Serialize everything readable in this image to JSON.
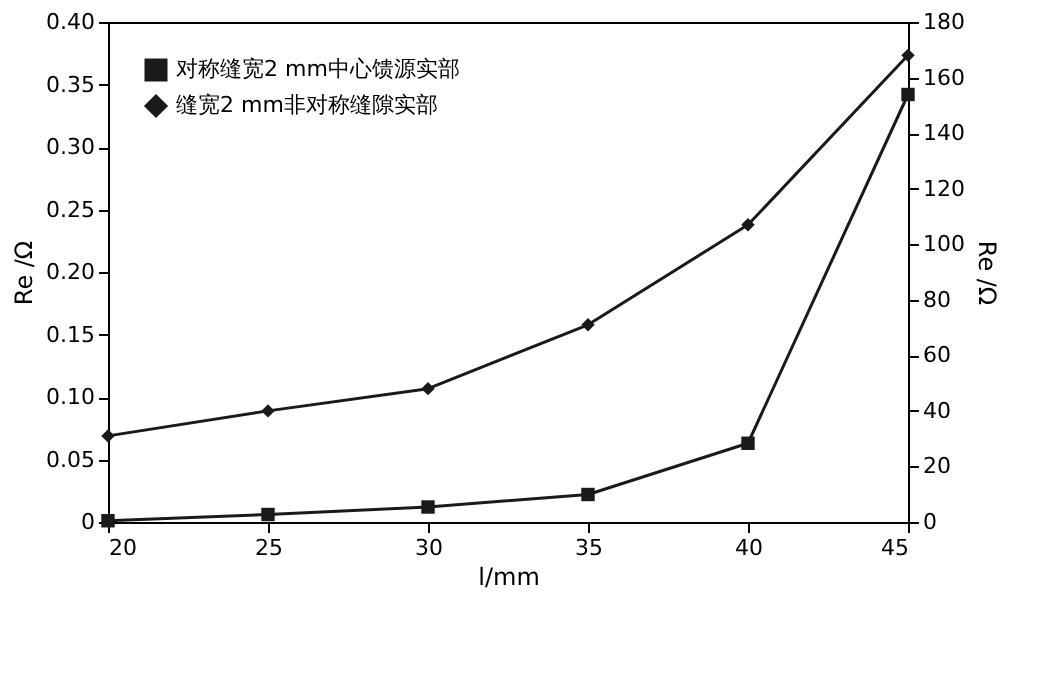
{
  "chart_data": {
    "type": "line",
    "x": [
      20,
      25,
      30,
      35,
      40,
      45
    ],
    "xlabel": "l/mm",
    "ylabel": "Re /Ω",
    "y2label": "Re /Ω",
    "series": [
      {
        "name": "对称缝宽2 mm中心馈源实部",
        "color": "#1a1a1a",
        "marker": "square",
        "values": [
          0.001,
          0.006,
          0.012,
          0.022,
          0.063,
          0.342
        ]
      },
      {
        "name": "缝宽2 mm非对称缝隙实部",
        "color": "#1a1a1a",
        "marker": "diamond",
        "axis": "y2",
        "values": [
          31,
          40,
          48,
          71,
          107,
          168
        ]
      }
    ],
    "xlim": [
      20,
      45
    ],
    "xticks": [
      20,
      25,
      30,
      35,
      40,
      45
    ],
    "ylim": [
      0,
      0.4
    ],
    "yticks": [
      {
        "value": 0,
        "label": "0"
      },
      0.05,
      {
        "value": 0.1,
        "label": "0.10"
      },
      0.15,
      {
        "value": 0.2,
        "label": "0.20"
      },
      0.25,
      {
        "value": 0.3,
        "label": "0.30"
      },
      0.35,
      {
        "value": 0.4,
        "label": "0.40"
      }
    ],
    "y2lim": [
      0,
      180
    ],
    "y2ticks": [
      0,
      20,
      40,
      60,
      80,
      100,
      120,
      140,
      160,
      180
    ],
    "grid": false,
    "legend": "top left",
    "line_style": "solid"
  }
}
